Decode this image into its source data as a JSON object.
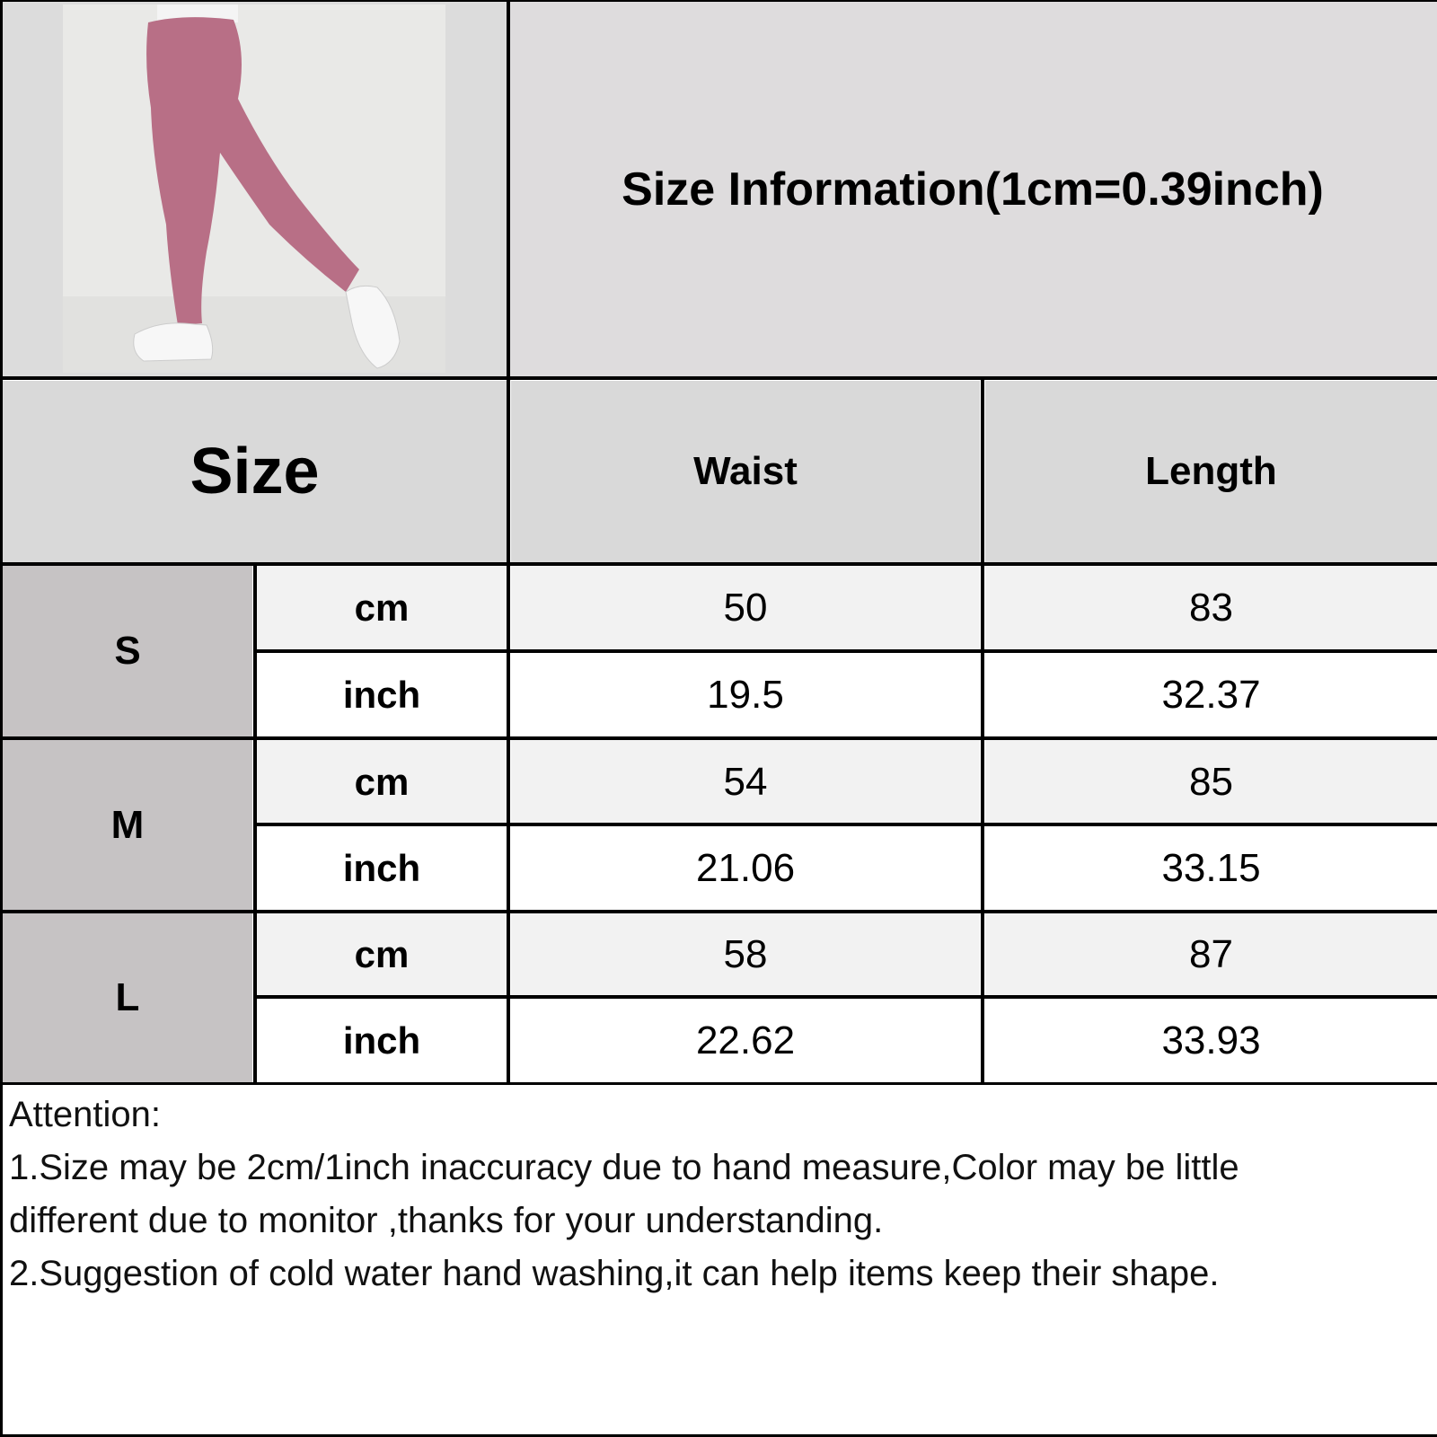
{
  "title": "Size Information(1cm=0.39inch)",
  "table": {
    "headers": {
      "size": "Size",
      "waist": "Waist",
      "length": "Length"
    },
    "rows": [
      {
        "size": "S",
        "cm": {
          "unit": "cm",
          "waist": "50",
          "length": "83"
        },
        "inch": {
          "unit": "inch",
          "waist": "19.5",
          "length": "32.37"
        }
      },
      {
        "size": "M",
        "cm": {
          "unit": "cm",
          "waist": "54",
          "length": "85"
        },
        "inch": {
          "unit": "inch",
          "waist": "21.06",
          "length": "33.15"
        }
      },
      {
        "size": "L",
        "cm": {
          "unit": "cm",
          "waist": "58",
          "length": "87"
        },
        "inch": {
          "unit": "inch",
          "waist": "22.62",
          "length": "33.93"
        }
      }
    ]
  },
  "attention": {
    "heading": "Attention:",
    "lines": [
      "1.Size may be 2cm/1inch inaccuracy due to hand measure,Color may be little",
      "different due to monitor ,thanks for your understanding.",
      "2.Suggestion of cold water hand washing,it can help items keep their shape."
    ]
  },
  "colors": {
    "header": "#d9d9d9",
    "size_cell": "#c6c3c4",
    "cm_row": "#f2f2f2",
    "title_bg": "#dedcdd",
    "leggings": "#b86f86"
  }
}
